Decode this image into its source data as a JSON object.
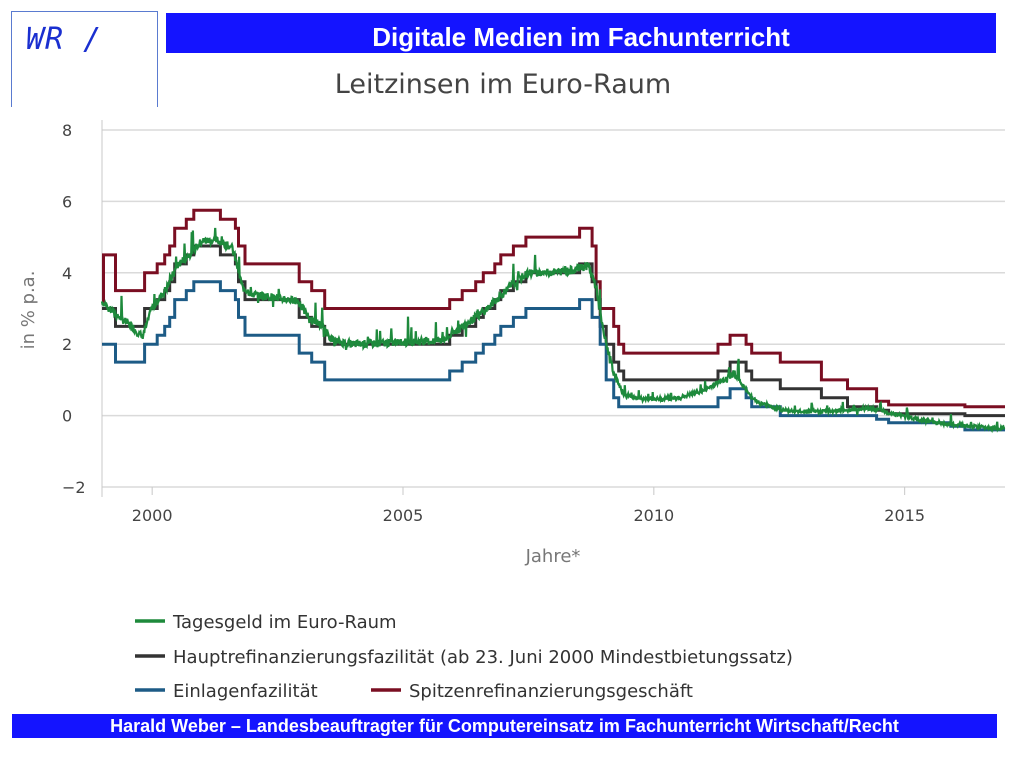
{
  "header": {
    "logo_text": "WR /",
    "title": "Digitale Medien im Fachunterricht"
  },
  "footer": {
    "text": "Harald Weber – Landesbeauftragter für Computereinsatz im Fachunterricht Wirtschaft/Recht"
  },
  "colors": {
    "bar_blue": "#1414ff",
    "tagesgeld": "#1e8a3c",
    "haupt": "#333333",
    "einlage": "#1d5b86",
    "spitzen": "#7a0e22"
  },
  "chart_data": {
    "type": "line",
    "title": "Leitzinsen im Euro-Raum",
    "xlabel": "Jahre*",
    "ylabel": "in % p.a.",
    "xlim": [
      1999.0,
      2017.0
    ],
    "ylim": [
      -2,
      8
    ],
    "x_ticks": [
      "2000",
      "2005",
      "2010",
      "2015"
    ],
    "y_ticks": [
      "8",
      "6",
      "4",
      "2",
      "0",
      "−2"
    ],
    "grid": true,
    "legend_position": "bottom",
    "series": [
      {
        "name": "Tagesgeld im Euro-Raum",
        "color": "#1e8a3c",
        "style": "noisy",
        "points": [
          [
            1999.0,
            3.2
          ],
          [
            1999.3,
            2.8
          ],
          [
            1999.6,
            2.5
          ],
          [
            1999.8,
            2.2
          ],
          [
            2000.0,
            3.0
          ],
          [
            2000.3,
            3.6
          ],
          [
            2000.5,
            4.2
          ],
          [
            2000.8,
            4.6
          ],
          [
            2001.0,
            4.9
          ],
          [
            2001.3,
            4.9
          ],
          [
            2001.6,
            4.7
          ],
          [
            2001.8,
            3.6
          ],
          [
            2002.0,
            3.4
          ],
          [
            2002.5,
            3.3
          ],
          [
            2002.9,
            3.2
          ],
          [
            2003.1,
            2.8
          ],
          [
            2003.4,
            2.5
          ],
          [
            2003.6,
            2.1
          ],
          [
            2004.0,
            2.0
          ],
          [
            2005.0,
            2.05
          ],
          [
            2005.8,
            2.1
          ],
          [
            2006.0,
            2.3
          ],
          [
            2006.3,
            2.6
          ],
          [
            2006.6,
            2.9
          ],
          [
            2006.9,
            3.3
          ],
          [
            2007.2,
            3.7
          ],
          [
            2007.5,
            4.0
          ],
          [
            2007.8,
            4.0
          ],
          [
            2008.3,
            4.05
          ],
          [
            2008.7,
            4.2
          ],
          [
            2008.85,
            3.6
          ],
          [
            2009.0,
            2.3
          ],
          [
            2009.2,
            1.2
          ],
          [
            2009.4,
            0.6
          ],
          [
            2009.8,
            0.45
          ],
          [
            2010.5,
            0.5
          ],
          [
            2011.0,
            0.7
          ],
          [
            2011.3,
            0.95
          ],
          [
            2011.6,
            1.2
          ],
          [
            2011.9,
            0.6
          ],
          [
            2012.1,
            0.35
          ],
          [
            2012.6,
            0.15
          ],
          [
            2013.0,
            0.1
          ],
          [
            2013.8,
            0.15
          ],
          [
            2014.3,
            0.2
          ],
          [
            2014.8,
            0.05
          ],
          [
            2015.3,
            -0.12
          ],
          [
            2015.9,
            -0.25
          ],
          [
            2016.5,
            -0.32
          ],
          [
            2017.0,
            -0.35
          ]
        ]
      },
      {
        "name": "Hauptrefinanzierungsfazilität (ab 23. Juni 2000 Mindestbietungssatz)",
        "color": "#333333",
        "style": "step",
        "points": [
          [
            1999.0,
            3.0
          ],
          [
            1999.27,
            2.5
          ],
          [
            1999.85,
            3.0
          ],
          [
            2000.1,
            3.25
          ],
          [
            2000.25,
            3.5
          ],
          [
            2000.35,
            3.75
          ],
          [
            2000.45,
            4.25
          ],
          [
            2000.68,
            4.5
          ],
          [
            2000.83,
            4.75
          ],
          [
            2001.36,
            4.5
          ],
          [
            2001.66,
            4.25
          ],
          [
            2001.72,
            3.75
          ],
          [
            2001.85,
            3.25
          ],
          [
            2002.93,
            2.75
          ],
          [
            2003.18,
            2.5
          ],
          [
            2003.44,
            2.0
          ],
          [
            2005.93,
            2.25
          ],
          [
            2006.18,
            2.5
          ],
          [
            2006.45,
            2.75
          ],
          [
            2006.6,
            3.0
          ],
          [
            2006.83,
            3.25
          ],
          [
            2006.95,
            3.5
          ],
          [
            2007.2,
            3.75
          ],
          [
            2007.45,
            4.0
          ],
          [
            2008.52,
            4.25
          ],
          [
            2008.77,
            3.75
          ],
          [
            2008.85,
            3.25
          ],
          [
            2008.93,
            2.5
          ],
          [
            2009.05,
            2.0
          ],
          [
            2009.2,
            1.5
          ],
          [
            2009.3,
            1.25
          ],
          [
            2009.4,
            1.0
          ],
          [
            2011.28,
            1.25
          ],
          [
            2011.52,
            1.5
          ],
          [
            2011.84,
            1.25
          ],
          [
            2011.95,
            1.0
          ],
          [
            2012.52,
            0.75
          ],
          [
            2013.34,
            0.5
          ],
          [
            2013.86,
            0.25
          ],
          [
            2014.44,
            0.15
          ],
          [
            2014.68,
            0.05
          ],
          [
            2016.2,
            0.0
          ],
          [
            2017.0,
            0.0
          ]
        ]
      },
      {
        "name": "Einlagenfazilität",
        "color": "#1d5b86",
        "style": "step",
        "points": [
          [
            1999.0,
            2.0
          ],
          [
            1999.27,
            1.5
          ],
          [
            1999.85,
            2.0
          ],
          [
            2000.1,
            2.25
          ],
          [
            2000.25,
            2.5
          ],
          [
            2000.35,
            2.75
          ],
          [
            2000.45,
            3.25
          ],
          [
            2000.68,
            3.5
          ],
          [
            2000.83,
            3.75
          ],
          [
            2001.36,
            3.5
          ],
          [
            2001.66,
            3.25
          ],
          [
            2001.72,
            2.75
          ],
          [
            2001.85,
            2.25
          ],
          [
            2002.93,
            1.75
          ],
          [
            2003.18,
            1.5
          ],
          [
            2003.44,
            1.0
          ],
          [
            2005.93,
            1.25
          ],
          [
            2006.18,
            1.5
          ],
          [
            2006.45,
            1.75
          ],
          [
            2006.6,
            2.0
          ],
          [
            2006.83,
            2.25
          ],
          [
            2006.95,
            2.5
          ],
          [
            2007.2,
            2.75
          ],
          [
            2007.45,
            3.0
          ],
          [
            2008.52,
            3.25
          ],
          [
            2008.77,
            2.75
          ],
          [
            2008.85,
            2.75
          ],
          [
            2008.93,
            2.0
          ],
          [
            2009.05,
            1.0
          ],
          [
            2009.2,
            0.5
          ],
          [
            2009.3,
            0.25
          ],
          [
            2011.28,
            0.5
          ],
          [
            2011.52,
            0.75
          ],
          [
            2011.84,
            0.5
          ],
          [
            2011.95,
            0.25
          ],
          [
            2012.52,
            0.0
          ],
          [
            2014.44,
            -0.1
          ],
          [
            2014.68,
            -0.2
          ],
          [
            2015.92,
            -0.3
          ],
          [
            2016.2,
            -0.4
          ],
          [
            2017.0,
            -0.4
          ]
        ]
      },
      {
        "name": "Spitzenrefinanzierungsgeschäft",
        "color": "#7a0e22",
        "style": "step",
        "points": [
          [
            1999.0,
            3.2
          ],
          [
            1999.03,
            4.5
          ],
          [
            1999.27,
            3.5
          ],
          [
            1999.85,
            4.0
          ],
          [
            2000.1,
            4.25
          ],
          [
            2000.25,
            4.5
          ],
          [
            2000.35,
            4.75
          ],
          [
            2000.45,
            5.25
          ],
          [
            2000.68,
            5.5
          ],
          [
            2000.83,
            5.75
          ],
          [
            2001.36,
            5.5
          ],
          [
            2001.66,
            5.25
          ],
          [
            2001.72,
            4.75
          ],
          [
            2001.85,
            4.25
          ],
          [
            2002.93,
            3.75
          ],
          [
            2003.18,
            3.5
          ],
          [
            2003.44,
            3.0
          ],
          [
            2005.93,
            3.25
          ],
          [
            2006.18,
            3.5
          ],
          [
            2006.45,
            3.75
          ],
          [
            2006.6,
            4.0
          ],
          [
            2006.83,
            4.25
          ],
          [
            2006.95,
            4.5
          ],
          [
            2007.2,
            4.75
          ],
          [
            2007.45,
            5.0
          ],
          [
            2008.52,
            5.25
          ],
          [
            2008.77,
            4.75
          ],
          [
            2008.85,
            3.75
          ],
          [
            2008.93,
            3.0
          ],
          [
            2009.05,
            3.0
          ],
          [
            2009.2,
            2.5
          ],
          [
            2009.3,
            2.0
          ],
          [
            2009.4,
            1.75
          ],
          [
            2011.28,
            2.0
          ],
          [
            2011.52,
            2.25
          ],
          [
            2011.84,
            2.0
          ],
          [
            2011.95,
            1.75
          ],
          [
            2012.52,
            1.5
          ],
          [
            2013.34,
            1.0
          ],
          [
            2013.86,
            0.75
          ],
          [
            2014.44,
            0.4
          ],
          [
            2014.68,
            0.3
          ],
          [
            2016.2,
            0.25
          ],
          [
            2017.0,
            0.25
          ]
        ]
      }
    ]
  }
}
